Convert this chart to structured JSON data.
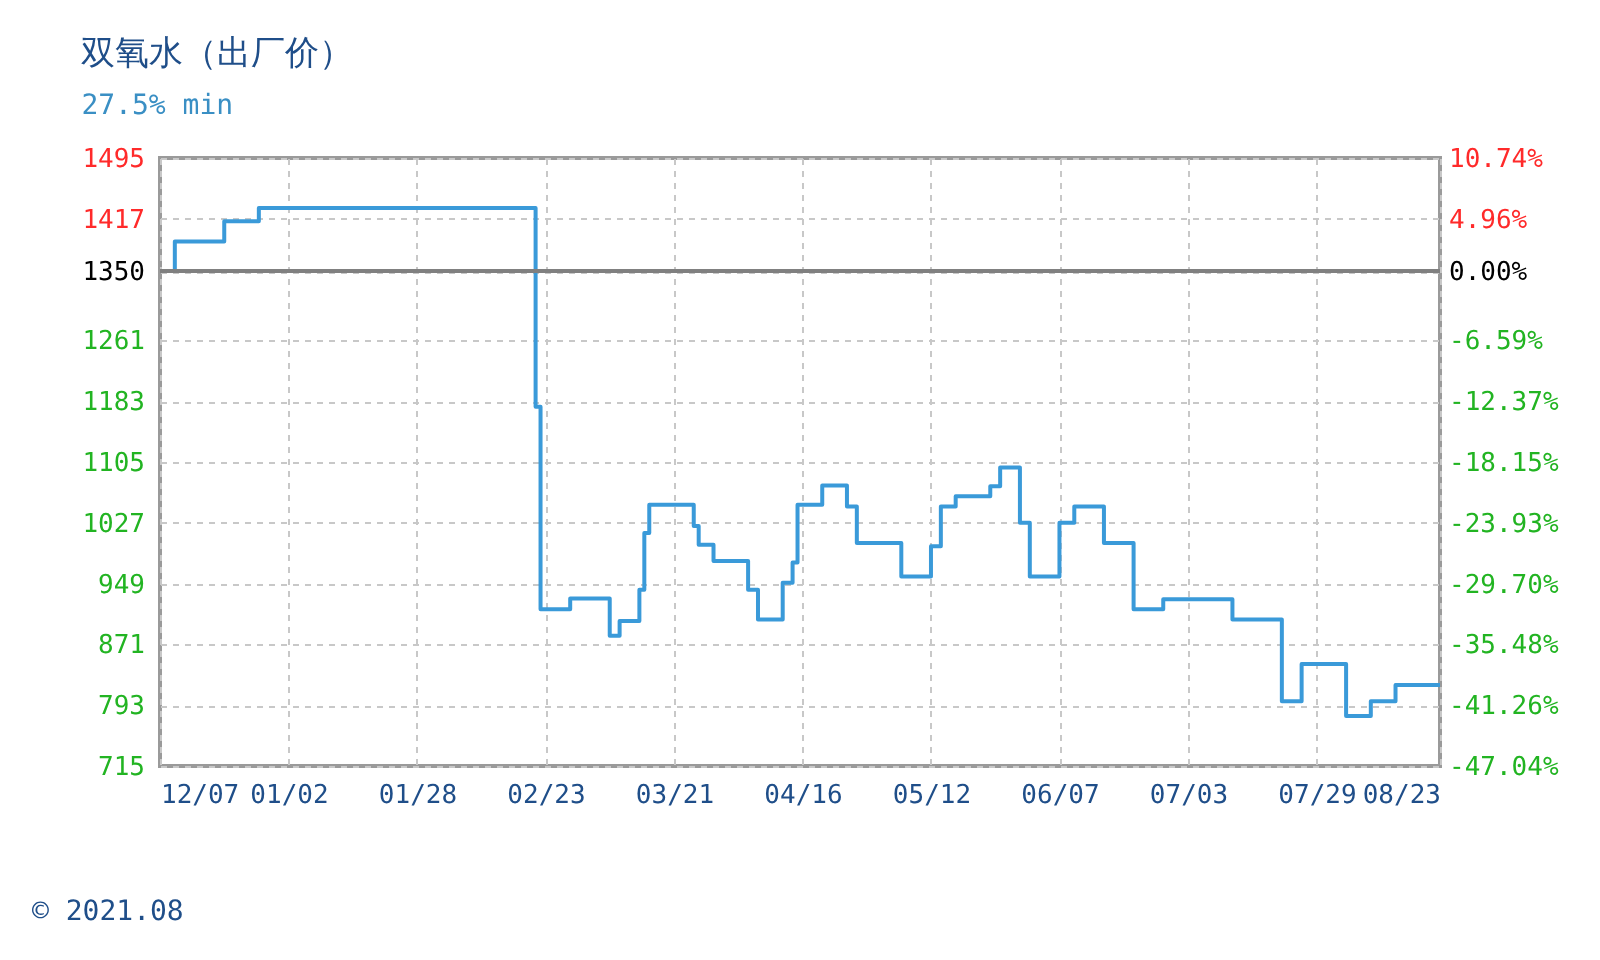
{
  "chart_data": {
    "type": "step",
    "title": "双氧水（出厂价）",
    "subtitle": "27.5% min",
    "annotations": [
      "© 2021.08"
    ],
    "x": [
      "2020-12-07",
      "2020-12-10",
      "2020-12-20",
      "2020-12-27",
      "2021-02-21",
      "2021-02-22",
      "2021-02-28",
      "2021-03-08",
      "2021-03-10",
      "2021-03-14",
      "2021-03-15",
      "2021-03-16",
      "2021-03-25",
      "2021-03-26",
      "2021-03-29",
      "2021-04-05",
      "2021-04-07",
      "2021-04-12",
      "2021-04-14",
      "2021-04-15",
      "2021-04-20",
      "2021-04-25",
      "2021-04-27",
      "2021-05-06",
      "2021-05-12",
      "2021-05-14",
      "2021-05-17",
      "2021-05-24",
      "2021-05-26",
      "2021-05-30",
      "2021-06-01",
      "2021-06-07",
      "2021-06-10",
      "2021-06-16",
      "2021-06-22",
      "2021-06-28",
      "2021-07-12",
      "2021-07-22",
      "2021-07-26",
      "2021-08-04",
      "2021-08-09",
      "2021-08-14",
      "2021-08-23"
    ],
    "series": [
      {
        "color": "#3a9ad9",
        "values": [
          1350,
          1388,
          1414,
          1431,
          1176,
          916,
          930,
          882,
          901,
          941,
          1014,
          1050,
          1023,
          999,
          978,
          941,
          903,
          950,
          976,
          1050,
          1075,
          1048,
          1001,
          958,
          997,
          1048,
          1061,
          1074,
          1098,
          1027,
          958,
          1027,
          1048,
          1001,
          916,
          929,
          903,
          798,
          846,
          779,
          798,
          819,
          819
        ]
      }
    ],
    "xlim": [
      "2020-12-07",
      "2021-08-23"
    ],
    "xticks": [
      {
        "value": "2020-12-07",
        "label": "12/07"
      },
      {
        "value": "2021-01-02",
        "label": "01/02"
      },
      {
        "value": "2021-01-28",
        "label": "01/28"
      },
      {
        "value": "2021-02-23",
        "label": "02/23"
      },
      {
        "value": "2021-03-21",
        "label": "03/21"
      },
      {
        "value": "2021-04-16",
        "label": "04/16"
      },
      {
        "value": "2021-05-12",
        "label": "05/12"
      },
      {
        "value": "2021-06-07",
        "label": "06/07"
      },
      {
        "value": "2021-07-03",
        "label": "07/03"
      },
      {
        "value": "2021-07-29",
        "label": "07/29"
      },
      {
        "value": "2021-08-23",
        "label": "08/23"
      }
    ],
    "ylim": [
      715,
      1495
    ],
    "yticks": [
      715,
      793,
      871,
      949,
      1027,
      1105,
      1183,
      1261,
      1350,
      1417,
      1495
    ],
    "y2lim": [
      -47.04,
      10.74
    ],
    "y2ticks": [
      {
        "value": -47.04,
        "label": "-47.04%"
      },
      {
        "value": -41.26,
        "label": "-41.26%"
      },
      {
        "value": -35.48,
        "label": "-35.48%"
      },
      {
        "value": -29.7,
        "label": "-29.70%"
      },
      {
        "value": -23.93,
        "label": "-23.93%"
      },
      {
        "value": -18.15,
        "label": "-18.15%"
      },
      {
        "value": -12.37,
        "label": "-12.37%"
      },
      {
        "value": -6.59,
        "label": "-6.59%"
      },
      {
        "value": 0,
        "label": "0.00%"
      },
      {
        "value": 4.96,
        "label": "4.96%"
      },
      {
        "value": 10.74,
        "label": "10.74%"
      }
    ],
    "ref_lines": [
      {
        "axis": "y2",
        "value": 0,
        "color": "#808080"
      }
    ],
    "grid": true,
    "marker": "none",
    "line_style": "solid"
  }
}
